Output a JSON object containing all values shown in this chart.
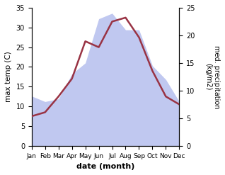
{
  "months": [
    "Jan",
    "Feb",
    "Mar",
    "Apr",
    "May",
    "Jun",
    "Jul",
    "Aug",
    "Sep",
    "Oct",
    "Nov",
    "Dec"
  ],
  "temp": [
    7.5,
    8.5,
    12.5,
    17.0,
    26.5,
    25.0,
    31.5,
    32.5,
    27.5,
    19.0,
    12.5,
    10.5
  ],
  "precip": [
    9.0,
    8.0,
    8.5,
    13.0,
    15.0,
    23.0,
    24.0,
    21.0,
    21.0,
    14.5,
    12.0,
    8.0
  ],
  "temp_color": "#993344",
  "precip_fill_color": "#c0c8f0",
  "ylabel_left": "max temp (C)",
  "ylabel_right": "med. precipitation\n(kg/m2)",
  "xlabel": "date (month)",
  "ylim_left": [
    0,
    35
  ],
  "ylim_right": [
    0,
    25
  ],
  "yticks_left": [
    0,
    5,
    10,
    15,
    20,
    25,
    30,
    35
  ],
  "yticks_right": [
    0,
    5,
    10,
    15,
    20,
    25
  ],
  "background_color": "#ffffff"
}
